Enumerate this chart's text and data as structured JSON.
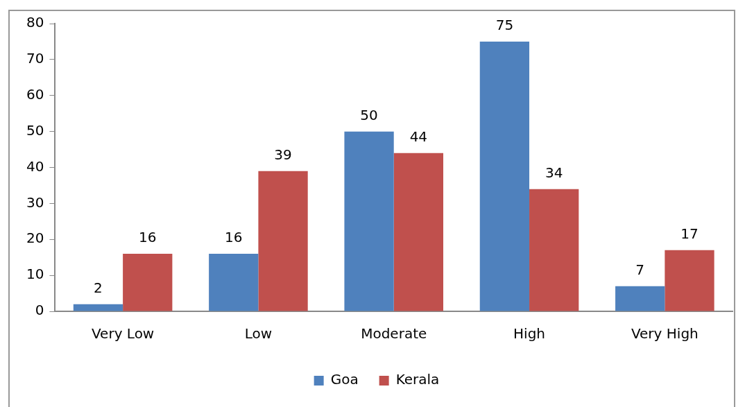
{
  "chart_data": {
    "type": "bar",
    "categories": [
      "Very Low",
      "Low",
      "Moderate",
      "High",
      "Very High"
    ],
    "series": [
      {
        "name": "Goa",
        "color": "#4f81bd",
        "values": [
          2,
          16,
          50,
          75,
          7
        ]
      },
      {
        "name": "Kerala",
        "color": "#c0504d",
        "values": [
          16,
          39,
          44,
          34,
          17
        ]
      }
    ],
    "ylim": [
      0,
      80
    ],
    "yticks": [
      0,
      10,
      20,
      30,
      40,
      50,
      60,
      70,
      80
    ],
    "grid": false,
    "legend": "bottom",
    "data_labels": true
  }
}
